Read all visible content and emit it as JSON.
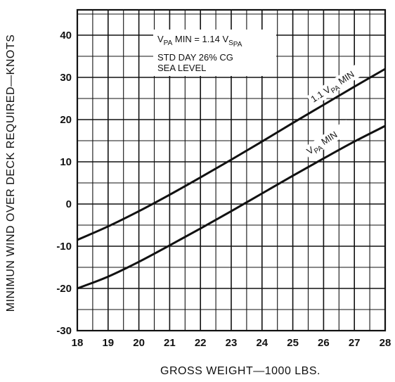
{
  "chart_data": {
    "type": "line",
    "xlabel": "GROSS WEIGHT—1000 LBS.",
    "ylabel": "MINIMUN WIND OVER DECK REQUIRED—KNOTS",
    "xlim": [
      18,
      28
    ],
    "ylim": [
      -30,
      46
    ],
    "x_ticks": [
      18,
      19,
      20,
      21,
      22,
      23,
      24,
      25,
      26,
      27,
      28
    ],
    "y_ticks": [
      -30,
      -20,
      -10,
      0,
      10,
      20,
      30,
      40
    ],
    "grid": true,
    "series": [
      {
        "name": "1.1 VPA MIN",
        "x": [
          18,
          19,
          20,
          21,
          22,
          23,
          24,
          25,
          26,
          27,
          28
        ],
        "y": [
          -8.5,
          -5.3,
          -1.7,
          2.2,
          6.3,
          10.5,
          14.8,
          19.2,
          23.5,
          27.8,
          32.0
        ]
      },
      {
        "name": "VPA MIN",
        "x": [
          18,
          19,
          20,
          21,
          22,
          23,
          24,
          25,
          26,
          27,
          28
        ],
        "y": [
          -20.0,
          -17.2,
          -13.7,
          -9.8,
          -5.8,
          -1.7,
          2.5,
          6.7,
          10.8,
          14.8,
          18.5
        ]
      }
    ],
    "annotation": {
      "formula_main": "V",
      "formula_sub1": "PA",
      "formula_mid": " MIN = 1.14 V",
      "formula_sub2": "S",
      "formula_sub3": "PA",
      "line2": "STD DAY 26% CG",
      "line3": "SEA LEVEL"
    },
    "series_labels": {
      "upper_prefix": "1.1 V",
      "upper_sub": "PA",
      "upper_suffix": " MIN",
      "lower_prefix": "V",
      "lower_sub": "PA",
      "lower_suffix": " MIN"
    }
  }
}
